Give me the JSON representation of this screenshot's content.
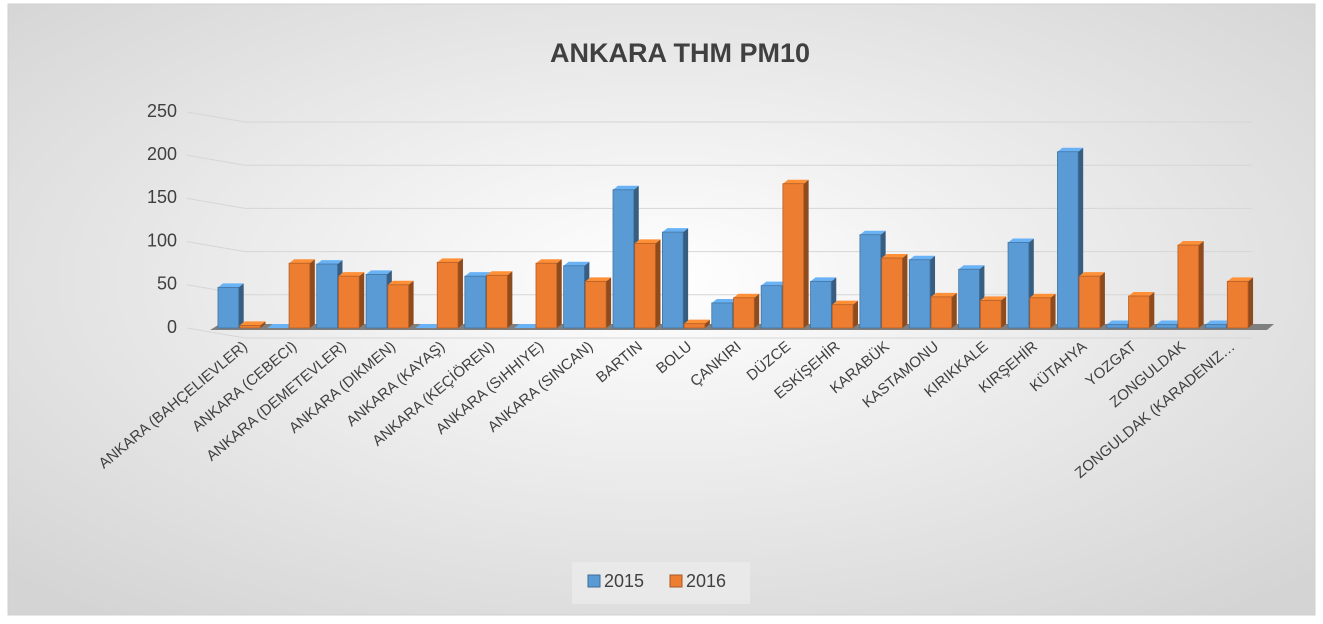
{
  "chart_data": {
    "type": "bar3d",
    "title": "ANKARA THM PM10",
    "categories": [
      "ANKARA (BAHÇELIEVLER)",
      "ANKARA (CEBECI)",
      "ANKARA (DEMETEVLER)",
      "ANKARA (DIKMEN)",
      "ANKARA (KAYAŞ)",
      "ANKARA (KEÇİÖREN)",
      "ANKARA (SıHHIYE)",
      "ANKARA (SINCAN)",
      "BARTIN",
      "BOLU",
      "ÇANKIRI",
      "DÜZCE",
      "ESKİŞEHİR",
      "KARABÜK",
      "KASTAMONU",
      "KIRIKKALE",
      "KIRŞEHİR",
      "KÜTAHYA",
      "YOZGAT",
      "ZONGULDAK",
      "ZONGULDAK (KARADENIZ…"
    ],
    "series": [
      {
        "name": "2015",
        "color": "#5b9bd5",
        "values": [
          47,
          0,
          74,
          62,
          0,
          60,
          0,
          72,
          160,
          111,
          29,
          49,
          54,
          108,
          79,
          68,
          99,
          204,
          4,
          4,
          4
        ]
      },
      {
        "name": "2016",
        "color": "#ed7d31",
        "values": [
          3,
          75,
          60,
          50,
          76,
          61,
          75,
          54,
          98,
          5,
          35,
          167,
          27,
          81,
          36,
          32,
          35,
          60,
          37,
          96,
          54
        ]
      }
    ],
    "ylim": [
      0,
      250
    ],
    "yticks": [
      0,
      50,
      100,
      150,
      200,
      250
    ],
    "grid": true,
    "legend": "bottom"
  }
}
